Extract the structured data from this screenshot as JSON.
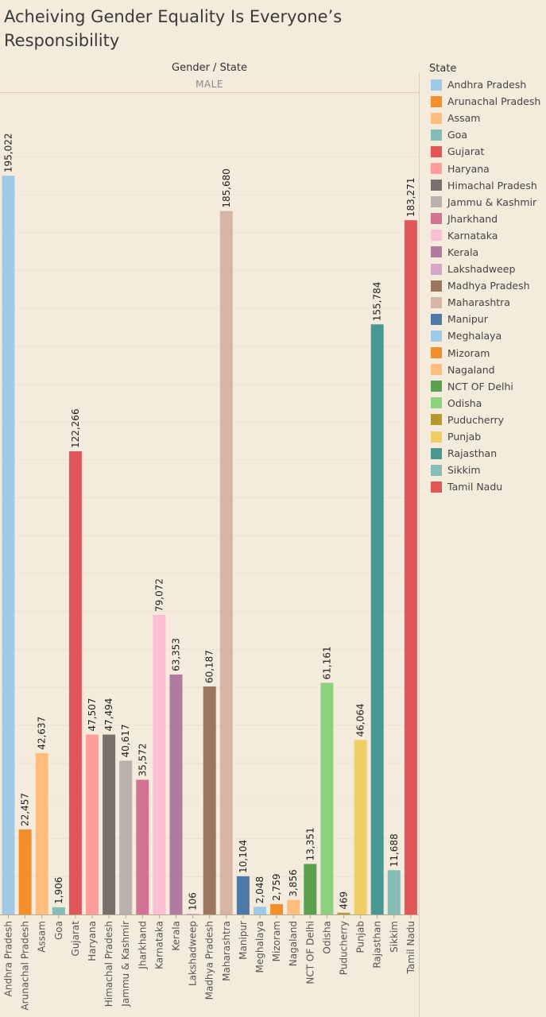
{
  "title": "Acheiving Gender Equality Is Everyone’s\nResponsibility",
  "header": {
    "group_label": "Gender / State",
    "gender": "MALE"
  },
  "legend": {
    "title": "State",
    "items": [
      {
        "label": "Andhra Pradesh",
        "color": "#a0cbe8"
      },
      {
        "label": "Arunachal Pradesh",
        "color": "#f28e2b"
      },
      {
        "label": "Assam",
        "color": "#ffbe7d"
      },
      {
        "label": "Goa",
        "color": "#86bcb6"
      },
      {
        "label": "Gujarat",
        "color": "#e15759"
      },
      {
        "label": "Haryana",
        "color": "#ff9d9a"
      },
      {
        "label": "Himachal Pradesh",
        "color": "#79706e"
      },
      {
        "label": "Jammu & Kashmir",
        "color": "#bab0ac"
      },
      {
        "label": "Jharkhand",
        "color": "#d37295"
      },
      {
        "label": "Karnataka",
        "color": "#fabfd2"
      },
      {
        "label": "Kerala",
        "color": "#b07aa1"
      },
      {
        "label": "Lakshadweep",
        "color": "#d4a6c8"
      },
      {
        "label": "Madhya Pradesh",
        "color": "#9d7660"
      },
      {
        "label": "Maharashtra",
        "color": "#d7b5a6"
      },
      {
        "label": "Manipur",
        "color": "#4e79a7"
      },
      {
        "label": "Meghalaya",
        "color": "#a0cbe8"
      },
      {
        "label": "Mizoram",
        "color": "#f28e2b"
      },
      {
        "label": "Nagaland",
        "color": "#ffbe7d"
      },
      {
        "label": "NCT OF Delhi",
        "color": "#59a14f"
      },
      {
        "label": "Odisha",
        "color": "#8cd17d"
      },
      {
        "label": "Puducherry",
        "color": "#b6992d"
      },
      {
        "label": "Punjab",
        "color": "#f1ce63"
      },
      {
        "label": "Rajasthan",
        "color": "#499894"
      },
      {
        "label": "Sikkim",
        "color": "#86bcb6"
      },
      {
        "label": "Tamil Nadu",
        "color": "#e15759"
      }
    ]
  },
  "chart_data": {
    "type": "bar",
    "title": "Acheiving Gender Equality Is Everyone’s Responsibility",
    "xlabel": "",
    "ylabel": "",
    "ylim": [
      0,
      200000
    ],
    "grid": true,
    "legend_position": "right",
    "panel": "MALE",
    "categories": [
      "Andhra Pradesh",
      "Arunachal Pradesh",
      "Assam",
      "Goa",
      "Gujarat",
      "Haryana",
      "Himachal Pradesh",
      "Jammu & Kashmir",
      "Jharkhand",
      "Karnataka",
      "Kerala",
      "Lakshadweep",
      "Madhya Pradesh",
      "Maharashtra",
      "Manipur",
      "Meghalaya",
      "Mizoram",
      "Nagaland",
      "NCT OF Delhi",
      "Odisha",
      "Puducherry",
      "Punjab",
      "Rajasthan",
      "Sikkim",
      "Tamil Nadu"
    ],
    "values": [
      195022,
      22457,
      42637,
      1906,
      122266,
      47507,
      47494,
      40617,
      35572,
      79072,
      63353,
      106,
      60187,
      185680,
      10104,
      2048,
      2759,
      3856,
      13351,
      61161,
      469,
      46064,
      155784,
      11688,
      183271
    ],
    "value_labels": [
      "195,022",
      "22,457",
      "42,637",
      "1,906",
      "122,266",
      "47,507",
      "47,494",
      "40,617",
      "35,572",
      "79,072",
      "63,353",
      "106",
      "60,187",
      "185,680",
      "10,104",
      "2,048",
      "2,759",
      "3,856",
      "13,351",
      "61,161",
      "469",
      "46,064",
      "155,784",
      "11,688",
      "183,271"
    ],
    "colors": [
      "#a0cbe8",
      "#f28e2b",
      "#ffbe7d",
      "#86bcb6",
      "#e15759",
      "#ff9d9a",
      "#79706e",
      "#bab0ac",
      "#d37295",
      "#fabfd2",
      "#b07aa1",
      "#d4a6c8",
      "#9d7660",
      "#d7b5a6",
      "#4e79a7",
      "#a0cbe8",
      "#f28e2b",
      "#ffbe7d",
      "#59a14f",
      "#8cd17d",
      "#b6992d",
      "#f1ce63",
      "#499894",
      "#86bcb6",
      "#e15759"
    ]
  }
}
